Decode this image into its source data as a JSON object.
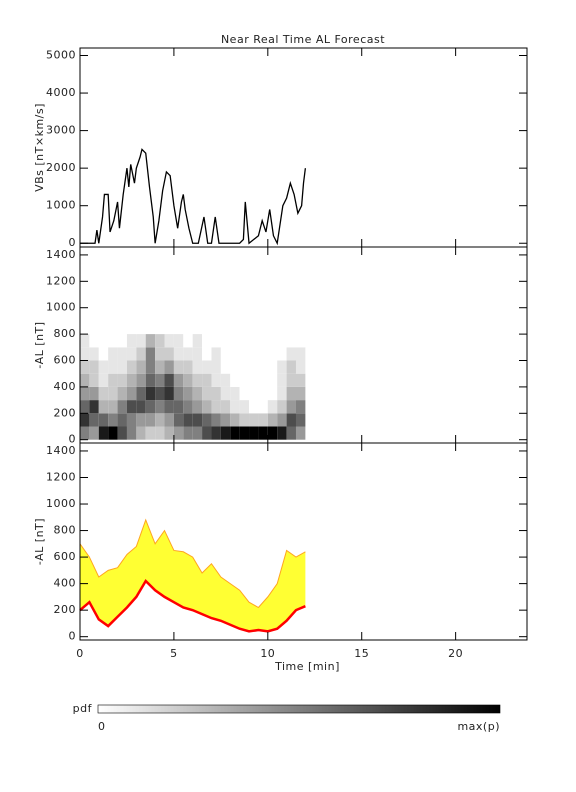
{
  "chart_data": [
    {
      "type": "line",
      "title": "Near Real Time AL Forecast",
      "ylabel": "VBs [nT×km/s]",
      "xlim": [
        0,
        23.8
      ],
      "ylim": [
        -100,
        5200
      ],
      "xticks": [
        0,
        5,
        10,
        15,
        20
      ],
      "yticks": [
        0,
        1000,
        2000,
        3000,
        4000,
        5000
      ],
      "show_xtick_labels": false,
      "x": [
        0,
        0.8,
        0.9,
        1.0,
        1.2,
        1.3,
        1.5,
        1.6,
        1.8,
        2.0,
        2.1,
        2.3,
        2.5,
        2.6,
        2.7,
        2.9,
        3.0,
        3.2,
        3.3,
        3.5,
        3.7,
        3.9,
        4.0,
        4.2,
        4.4,
        4.6,
        4.8,
        5.0,
        5.2,
        5.4,
        5.5,
        5.6,
        5.8,
        6.0,
        6.3,
        6.6,
        6.8,
        7.0,
        7.2,
        7.4,
        8.5,
        8.7,
        8.8,
        9.0,
        9.5,
        9.7,
        9.9,
        10.1,
        10.3,
        10.5,
        10.8,
        11.0,
        11.2,
        11.4,
        11.6,
        11.8,
        11.9,
        12.0
      ],
      "series": [
        {
          "color": "#000000",
          "values": [
            0,
            0,
            350,
            0,
            700,
            1300,
            1300,
            300,
            600,
            1100,
            400,
            1300,
            2000,
            1500,
            2100,
            1600,
            2000,
            2300,
            2500,
            2400,
            1500,
            700,
            0,
            600,
            1400,
            1900,
            1800,
            1000,
            400,
            1100,
            1300,
            900,
            400,
            0,
            0,
            700,
            0,
            0,
            700,
            0,
            0,
            100,
            1100,
            0,
            200,
            600,
            300,
            900,
            200,
            0,
            1000,
            1200,
            1600,
            1300,
            800,
            1000,
            1600,
            2000
          ]
        }
      ]
    },
    {
      "type": "heatmap",
      "ylabel": "-AL [nT]",
      "xlim": [
        0,
        23.8
      ],
      "ylim": [
        -25,
        1460
      ],
      "xticks": [
        0,
        5,
        10,
        15,
        20
      ],
      "yticks": [
        0,
        200,
        400,
        600,
        800,
        1000,
        1200,
        1400
      ],
      "show_xtick_labels": false,
      "x_bins": [
        0,
        0.5,
        1,
        1.5,
        2,
        2.5,
        3,
        3.5,
        4,
        4.5,
        5,
        5.5,
        6,
        6.5,
        7,
        7.5,
        8,
        8.5,
        9,
        9.5,
        10,
        10.5,
        11,
        11.5,
        12
      ],
      "y_bins": [
        0,
        100,
        200,
        300,
        400,
        500,
        600,
        700,
        800
      ],
      "z": [
        [
          0.5,
          0.4,
          0.9,
          1,
          0.7,
          0.5,
          0.3,
          0.2,
          0.2,
          0.3,
          0.4,
          0.5,
          0.5,
          0.7,
          0.8,
          0.9,
          1,
          1,
          1,
          1,
          1,
          0.9,
          0.6,
          0.4
        ],
        [
          0.8,
          0.6,
          0.6,
          0.5,
          0.6,
          0.5,
          0.4,
          0.4,
          0.3,
          0.4,
          0.6,
          0.7,
          0.7,
          0.6,
          0.5,
          0.4,
          0.3,
          0.2,
          0.2,
          0.2,
          0.3,
          0.4,
          0.7,
          0.6
        ],
        [
          0.6,
          0.8,
          0.3,
          0.3,
          0.5,
          0.7,
          0.7,
          0.6,
          0.5,
          0.6,
          0.6,
          0.5,
          0.4,
          0.3,
          0.2,
          0.2,
          0.1,
          0.1,
          0,
          0,
          0.1,
          0.2,
          0.4,
          0.5
        ],
        [
          0.4,
          0.4,
          0.2,
          0.2,
          0.3,
          0.4,
          0.6,
          0.8,
          0.7,
          0.8,
          0.5,
          0.4,
          0.3,
          0.2,
          0.2,
          0.1,
          0.1,
          0,
          0,
          0,
          0,
          0.1,
          0.3,
          0.3
        ],
        [
          0.3,
          0.2,
          0.1,
          0.2,
          0.2,
          0.3,
          0.4,
          0.6,
          0.5,
          0.7,
          0.4,
          0.3,
          0.2,
          0.2,
          0.1,
          0.1,
          0,
          0,
          0,
          0,
          0,
          0.1,
          0.2,
          0.2
        ],
        [
          0.2,
          0.2,
          0.1,
          0.1,
          0.1,
          0.2,
          0.3,
          0.5,
          0.3,
          0.4,
          0.2,
          0.2,
          0.1,
          0.1,
          0.1,
          0,
          0,
          0,
          0,
          0,
          0,
          0.1,
          0.2,
          0.1
        ],
        [
          0.1,
          0.1,
          0,
          0.1,
          0.1,
          0.1,
          0.2,
          0.5,
          0.2,
          0.2,
          0.1,
          0.1,
          0.1,
          0,
          0.1,
          0,
          0,
          0,
          0,
          0,
          0,
          0,
          0.1,
          0.1
        ],
        [
          0.1,
          0,
          0,
          0,
          0,
          0.1,
          0.1,
          0.3,
          0.2,
          0.1,
          0.1,
          0,
          0.1,
          0,
          0,
          0,
          0,
          0,
          0,
          0,
          0,
          0,
          0,
          0
        ]
      ],
      "colorbar": {
        "title": "pdf",
        "ticks": [
          0,
          {
            "value": 1,
            "label": "max(p)"
          }
        ]
      }
    },
    {
      "type": "band",
      "ylabel": "-AL [nT]",
      "xlabel": "Time [min]",
      "xlim": [
        0,
        23.8
      ],
      "ylim": [
        -25,
        1460
      ],
      "xticks": [
        0,
        5,
        10,
        15,
        20
      ],
      "yticks": [
        0,
        200,
        400,
        600,
        800,
        1000,
        1200,
        1400
      ],
      "show_xtick_labels": true,
      "band_color": "#ffff33",
      "x": [
        0,
        0.5,
        1,
        1.5,
        2,
        2.5,
        3,
        3.5,
        4,
        4.5,
        5,
        5.5,
        6,
        6.5,
        7,
        7.5,
        8,
        8.5,
        9,
        9.5,
        10,
        10.5,
        11,
        11.5,
        12
      ],
      "series": [
        {
          "color": "#ff0000",
          "values": [
            200,
            260,
            130,
            80,
            150,
            220,
            300,
            420,
            350,
            300,
            260,
            220,
            200,
            170,
            140,
            120,
            90,
            60,
            40,
            50,
            40,
            60,
            120,
            200,
            230
          ]
        },
        {
          "color": "#ffa520",
          "values": [
            700,
            600,
            450,
            500,
            520,
            620,
            680,
            880,
            700,
            800,
            650,
            640,
            600,
            480,
            550,
            450,
            400,
            350,
            260,
            220,
            300,
            400,
            650,
            600,
            640
          ]
        }
      ]
    }
  ]
}
